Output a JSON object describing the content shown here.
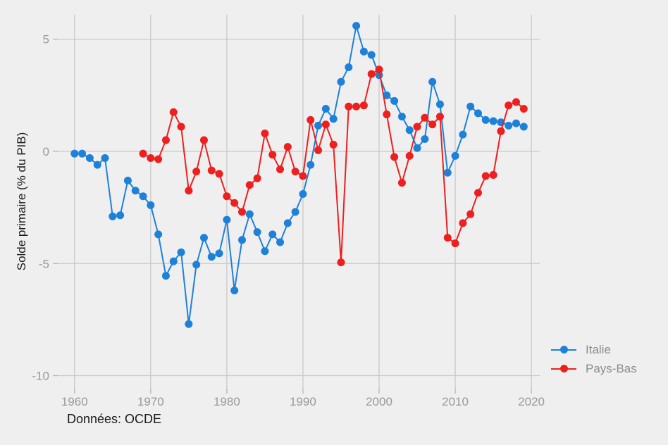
{
  "page": {
    "background": "#efefef"
  },
  "chart_data": {
    "type": "line",
    "title": "",
    "xlabel": "",
    "ylabel": "Solde primaire (% du PIB)",
    "caption": "Données: OCDE",
    "grid": "major-only",
    "legend_position": "right",
    "xlim": [
      1957.8,
      2021.1
    ],
    "ylim": [
      -10.58,
      6.09
    ],
    "x_ticks": [
      {
        "value": 1960,
        "label": "1960"
      },
      {
        "value": 1970,
        "label": "1970"
      },
      {
        "value": 1980,
        "label": "1980"
      },
      {
        "value": 1990,
        "label": "1990"
      },
      {
        "value": 2000,
        "label": "2000"
      },
      {
        "value": 2010,
        "label": "2010"
      },
      {
        "value": 2020,
        "label": "2020"
      }
    ],
    "y_ticks": [
      {
        "value": 5,
        "label": "5"
      },
      {
        "value": 0,
        "label": "0"
      },
      {
        "value": -5,
        "label": "-5"
      },
      {
        "value": -10,
        "label": "-10"
      }
    ],
    "series": [
      {
        "name": "Italie",
        "color": "#1e81d9",
        "start_year": 1960,
        "values": [
          -0.1,
          -0.1,
          -0.3,
          -0.6,
          -0.3,
          -2.9,
          -2.85,
          -1.3,
          -1.75,
          -2.0,
          -2.4,
          -3.7,
          -5.55,
          -4.9,
          -4.5,
          -7.7,
          -5.05,
          -3.85,
          -4.7,
          -4.55,
          -3.05,
          -6.2,
          -3.95,
          -2.8,
          -3.6,
          -4.45,
          -3.7,
          -4.05,
          -3.2,
          -2.7,
          -1.9,
          -0.6,
          1.15,
          1.9,
          1.45,
          3.1,
          3.75,
          5.6,
          4.45,
          4.3,
          3.4,
          2.5,
          2.25,
          1.55,
          0.95,
          0.15,
          0.55,
          3.1,
          2.1,
          -0.95,
          -0.2,
          0.75,
          2.0,
          1.7,
          1.4,
          1.35,
          1.3,
          1.15,
          1.25,
          1.1
        ]
      },
      {
        "name": "Pays-Bas",
        "color": "#ee1f1f",
        "start_year": 1969,
        "values": [
          -0.1,
          -0.3,
          -0.35,
          0.5,
          1.75,
          1.1,
          -1.75,
          -0.9,
          0.5,
          -0.85,
          -1.0,
          -2.0,
          -2.3,
          -2.7,
          -1.5,
          -1.2,
          0.8,
          -0.15,
          -0.8,
          0.2,
          -0.9,
          -1.1,
          1.4,
          0.05,
          1.2,
          0.3,
          -4.95,
          2.0,
          2.0,
          2.05,
          3.45,
          3.65,
          1.65,
          -0.25,
          -1.4,
          -0.2,
          1.1,
          1.5,
          1.2,
          1.55,
          -3.85,
          -4.1,
          -3.2,
          -2.8,
          -1.85,
          -1.1,
          -1.05,
          0.9,
          2.05,
          2.2,
          1.9
        ]
      }
    ],
    "style": {
      "grid_color": "#c9c9c9",
      "tick_color": "#b4b4b4",
      "axis_text_color": "#999999",
      "point_radius": 5.5,
      "line_width": 2
    }
  },
  "legend": {
    "items": [
      {
        "label": "Italie",
        "color": "#1e81d9"
      },
      {
        "label": "Pays-Bas",
        "color": "#ee1f1f"
      }
    ]
  }
}
